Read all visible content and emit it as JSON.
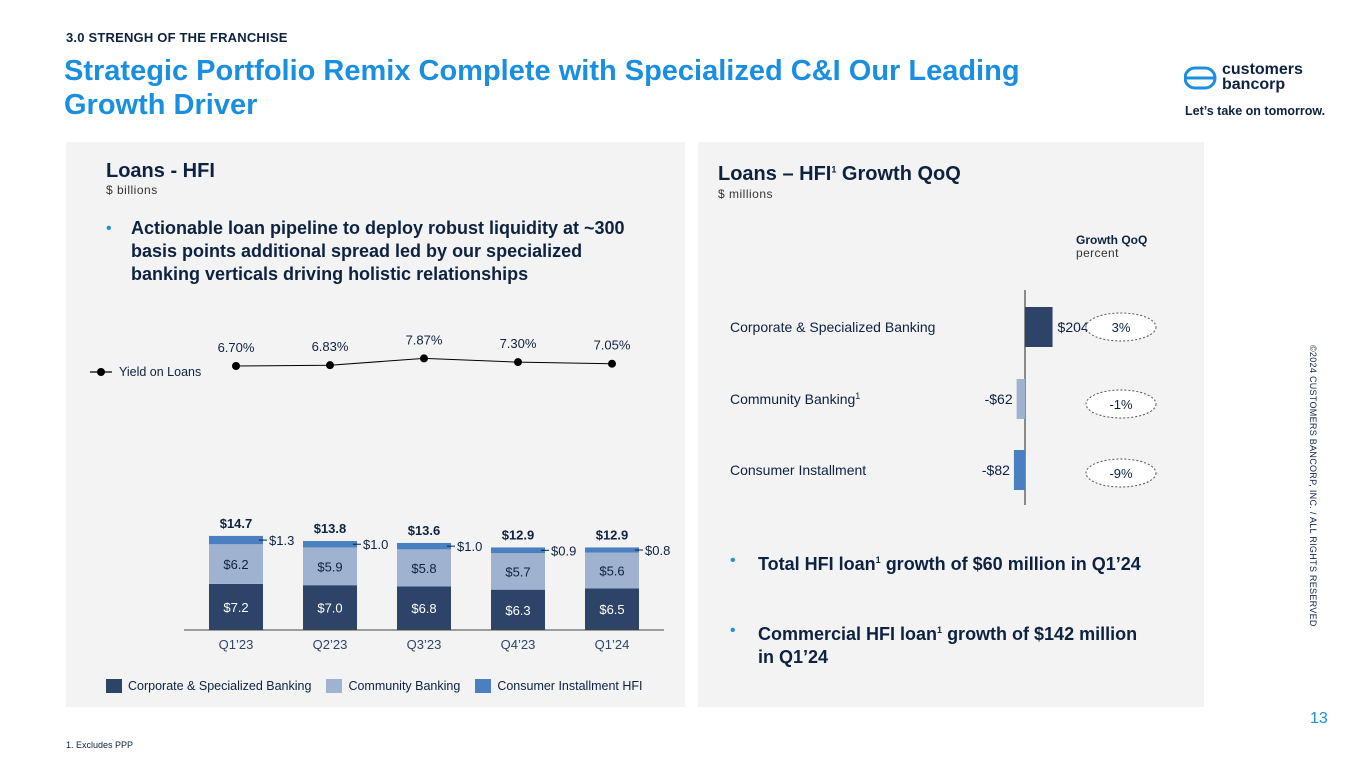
{
  "header": {
    "section_label": "3.0 STRENGH OF THE FRANCHISE",
    "title": "Strategic Portfolio Remix Complete with Specialized C&I Our Leading Growth Driver",
    "logo_text_line1": "customers",
    "logo_text_line2": "bancorp",
    "tagline": "Let’s take on tomorrow."
  },
  "left_panel": {
    "title": "Loans - HFI",
    "subtitle": "$ billions",
    "bullet": "Actionable loan pipeline to deploy robust liquidity at ~300 basis points additional spread led by our specialized banking verticals driving holistic relationships",
    "legend": [
      {
        "label": "Corporate & Specialized Banking",
        "color": "#2d4468"
      },
      {
        "label": "Community Banking",
        "color": "#9fb3d1"
      },
      {
        "label": "Consumer Installment HFI",
        "color": "#4a7fc1"
      }
    ]
  },
  "right_panel": {
    "title": "Loans – HFI",
    "title_sup": "1",
    "title_suffix": " Growth QoQ",
    "subtitle": "$ millions",
    "growth_header": "Growth QoQ",
    "growth_sub": "percent",
    "bullets": [
      {
        "pre": "Total HFI loan",
        "sup": "1",
        "post": " growth of $60 million in Q1’24"
      },
      {
        "pre": "Commercial HFI loan",
        "sup": "1",
        "post": " growth of $142 million in Q1’24"
      }
    ]
  },
  "chart_data": [
    {
      "type": "bar",
      "stacked": true,
      "title": "Loans - HFI",
      "ylabel": "$ billions",
      "categories": [
        "Q1’23",
        "Q2’23",
        "Q3’23",
        "Q4’23",
        "Q1’24"
      ],
      "series": [
        {
          "name": "Corporate & Specialized Banking",
          "values": [
            7.2,
            7.0,
            6.8,
            6.3,
            6.5
          ],
          "labels": [
            "$7.2",
            "$7.0",
            "$6.8",
            "$6.3",
            "$6.5"
          ],
          "color": "#2d4468"
        },
        {
          "name": "Community Banking",
          "values": [
            6.2,
            5.9,
            5.8,
            5.7,
            5.6
          ],
          "labels": [
            "$6.2",
            "$5.9",
            "$5.8",
            "$5.7",
            "$5.6"
          ],
          "color": "#9fb3d1"
        },
        {
          "name": "Consumer Installment HFI",
          "values": [
            1.3,
            1.0,
            1.0,
            0.9,
            0.8
          ],
          "labels": [
            "$1.3",
            "$1.0",
            "$1.0",
            "$0.9",
            "$0.8"
          ],
          "color": "#4a7fc1"
        }
      ],
      "totals": [
        "$14.7",
        "$13.8",
        "$13.6",
        "$12.9",
        "$12.9"
      ],
      "total_values": [
        14.7,
        13.8,
        13.6,
        12.9,
        12.9
      ],
      "line": {
        "name": "Yield on Loans",
        "values": [
          6.7,
          6.83,
          7.87,
          7.3,
          7.05
        ],
        "labels": [
          "6.70%",
          "6.83%",
          "7.87%",
          "7.30%",
          "7.05%"
        ],
        "color": "#000000"
      }
    },
    {
      "type": "bar",
      "orientation": "horizontal",
      "title": "Loans – HFI Growth QoQ",
      "ylabel": "$ millions",
      "categories": [
        "Corporate & Specialized Banking",
        "Community Banking",
        "Consumer Installment"
      ],
      "category_sups": [
        "",
        "1",
        ""
      ],
      "values": [
        204,
        -62,
        -82
      ],
      "labels": [
        "$204",
        "-$62",
        "-$82"
      ],
      "colors": [
        "#2d4468",
        "#9fb3d1",
        "#4a7fc1"
      ],
      "growth_pct": [
        "3%",
        "-1%",
        "-9%"
      ]
    }
  ],
  "footer": {
    "side_text": "©2024 CUSTOMERS BANCORP, INC. / ALL RIGHTS RESERVED",
    "page_number": "13",
    "footnote": "1.    Excludes PPP"
  }
}
